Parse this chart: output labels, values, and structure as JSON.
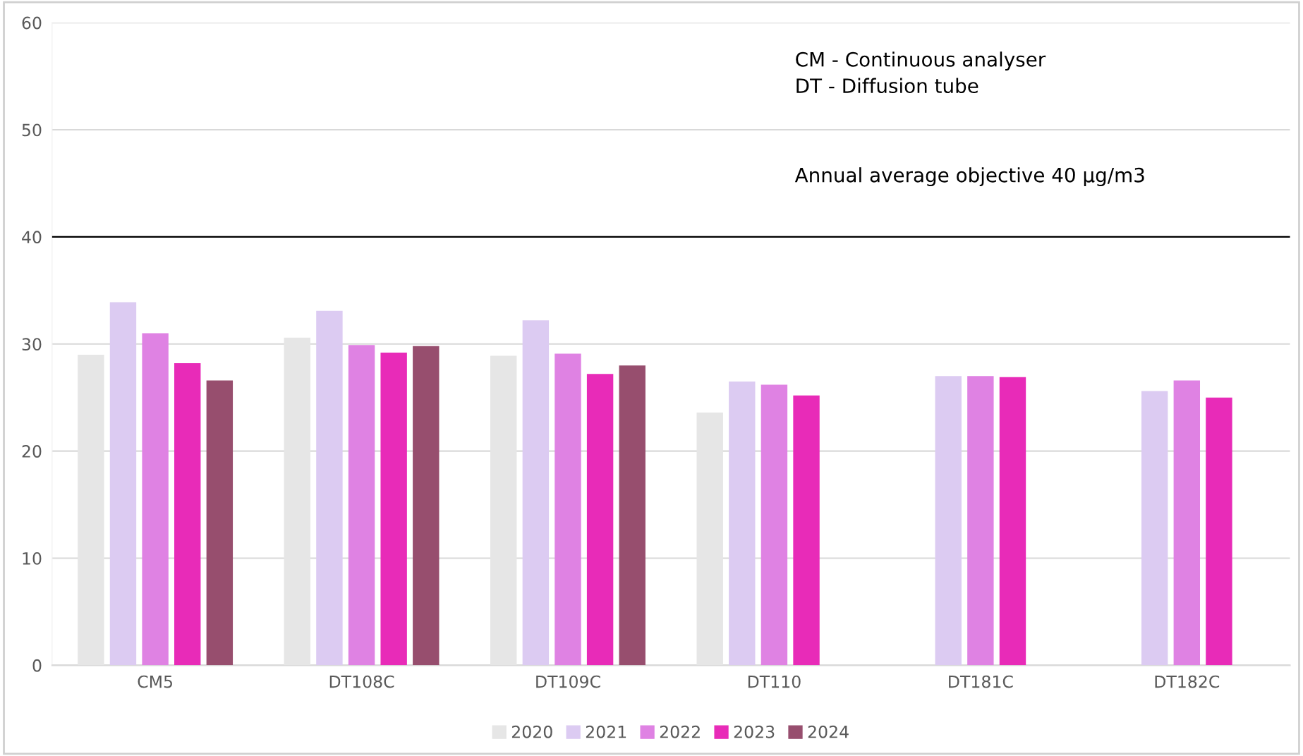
{
  "chart_data": {
    "type": "bar",
    "categories": [
      "CM5",
      "DT108C",
      "DT109C",
      "DT110",
      "DT181C",
      "DT182C"
    ],
    "series": [
      {
        "name": "2020",
        "color": "#e6e6e6",
        "values": [
          29.0,
          30.6,
          28.9,
          23.6,
          null,
          null
        ]
      },
      {
        "name": "2021",
        "color": "#dccbf2",
        "values": [
          33.9,
          33.1,
          32.2,
          26.5,
          27.0,
          25.6
        ]
      },
      {
        "name": "2022",
        "color": "#df82e3",
        "values": [
          31.0,
          29.9,
          29.1,
          26.2,
          27.0,
          26.6
        ]
      },
      {
        "name": "2023",
        "color": "#e82bb8",
        "values": [
          28.2,
          29.2,
          27.2,
          25.2,
          26.9,
          25.0
        ]
      },
      {
        "name": "2024",
        "color": "#974e6e",
        "values": [
          26.6,
          29.8,
          28.0,
          null,
          null,
          null
        ]
      }
    ],
    "ylim": [
      0,
      60
    ],
    "yticks": [
      0,
      10,
      20,
      30,
      40,
      50,
      60
    ],
    "grid": "y",
    "legend": "bottom",
    "ref_lines": [
      {
        "axis": "y",
        "value": 40,
        "color": "#000000"
      }
    ],
    "annotations": [
      "CM - Continuous analyser\nDT - Diffusion tube",
      "Annual average objective 40 µg/m3"
    ]
  }
}
